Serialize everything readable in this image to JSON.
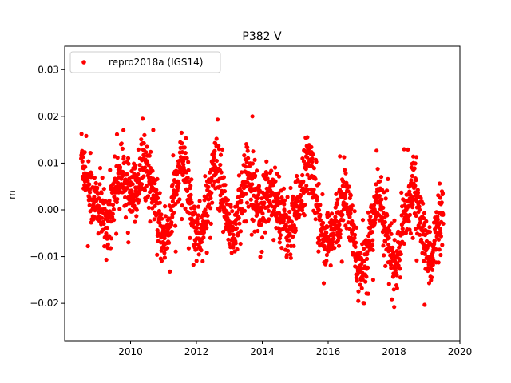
{
  "chart_data": {
    "type": "scatter",
    "title": "P382 V",
    "xlabel": "",
    "ylabel": "m",
    "xlim": [
      2008.0,
      2020.0
    ],
    "ylim": [
      -0.028,
      0.035
    ],
    "x_ticks": [
      2010,
      2012,
      2014,
      2016,
      2018,
      2020
    ],
    "x_tick_labels": [
      "2010",
      "2012",
      "2014",
      "2016",
      "2018",
      "2020"
    ],
    "y_ticks": [
      -0.02,
      -0.01,
      0.0,
      0.01,
      0.02,
      0.03
    ],
    "y_tick_labels": [
      "−0.02",
      "−0.01",
      "0.00",
      "0.01",
      "0.02",
      "0.03"
    ],
    "grid": false,
    "legend_position": "top-left",
    "series": [
      {
        "name": "repro2018a (IGS14)",
        "color": "#ff0000",
        "marker": "circle",
        "x": [
          2008.5,
          2008.6,
          2008.7,
          2008.8,
          2008.9,
          2009.0,
          2009.1,
          2009.2,
          2009.3,
          2009.4,
          2009.5,
          2009.6,
          2009.7,
          2009.8,
          2009.9,
          2010.0,
          2010.1,
          2010.2,
          2010.3,
          2010.4,
          2010.5,
          2010.6,
          2010.7,
          2010.8,
          2010.9,
          2011.0,
          2011.1,
          2011.2,
          2011.3,
          2011.4,
          2011.5,
          2011.6,
          2011.7,
          2011.8,
          2011.9,
          2012.0,
          2012.1,
          2012.2,
          2012.3,
          2012.4,
          2012.5,
          2012.6,
          2012.7,
          2012.8,
          2012.9,
          2013.0,
          2013.1,
          2013.2,
          2013.3,
          2013.4,
          2013.5,
          2013.6,
          2013.7,
          2013.8,
          2013.9,
          2014.0,
          2014.1,
          2014.2,
          2014.3,
          2014.4,
          2014.5,
          2014.6,
          2014.7,
          2014.8,
          2014.9,
          2015.0,
          2015.1,
          2015.2,
          2015.3,
          2015.4,
          2015.5,
          2015.6,
          2015.7,
          2015.8,
          2015.9,
          2016.0,
          2016.1,
          2016.2,
          2016.3,
          2016.4,
          2016.5,
          2016.6,
          2016.7,
          2016.8,
          2016.9,
          2017.0,
          2017.1,
          2017.2,
          2017.3,
          2017.4,
          2017.5,
          2017.6,
          2017.7,
          2017.8,
          2017.9,
          2018.0,
          2018.1,
          2018.2,
          2018.3,
          2018.4,
          2018.5,
          2018.6,
          2018.7,
          2018.8,
          2018.9,
          2019.0,
          2019.1,
          2019.2,
          2019.3,
          2019.4
        ],
        "y": [
          0.012,
          0.009,
          0.006,
          0.003,
          0.002,
          0.001,
          0.0,
          -0.002,
          -0.003,
          0.001,
          0.004,
          0.006,
          0.008,
          0.007,
          0.004,
          0.002,
          0.003,
          0.005,
          0.008,
          0.01,
          0.009,
          0.006,
          0.003,
          -0.001,
          -0.004,
          -0.006,
          -0.005,
          -0.002,
          0.002,
          0.005,
          0.009,
          0.01,
          0.007,
          0.003,
          -0.002,
          -0.005,
          -0.006,
          -0.004,
          0.0,
          0.004,
          0.008,
          0.009,
          0.006,
          0.002,
          -0.002,
          -0.004,
          -0.005,
          -0.003,
          0.001,
          0.004,
          0.007,
          0.008,
          0.006,
          0.003,
          0.001,
          0.0,
          0.002,
          0.004,
          0.005,
          0.003,
          0.001,
          -0.001,
          -0.003,
          -0.005,
          -0.004,
          -0.002,
          0.002,
          0.005,
          0.008,
          0.01,
          0.009,
          0.005,
          0.0,
          -0.004,
          -0.006,
          -0.007,
          -0.006,
          -0.004,
          -0.002,
          0.001,
          0.003,
          0.001,
          -0.003,
          -0.008,
          -0.012,
          -0.014,
          -0.012,
          -0.008,
          -0.004,
          0.0,
          0.003,
          0.002,
          -0.002,
          -0.006,
          -0.01,
          -0.012,
          -0.011,
          -0.007,
          -0.003,
          0.001,
          0.004,
          0.005,
          0.002,
          -0.002,
          -0.006,
          -0.009,
          -0.01,
          -0.008,
          -0.005,
          -0.003
        ],
        "spread": 0.006,
        "points_per_step": 18
      }
    ]
  }
}
